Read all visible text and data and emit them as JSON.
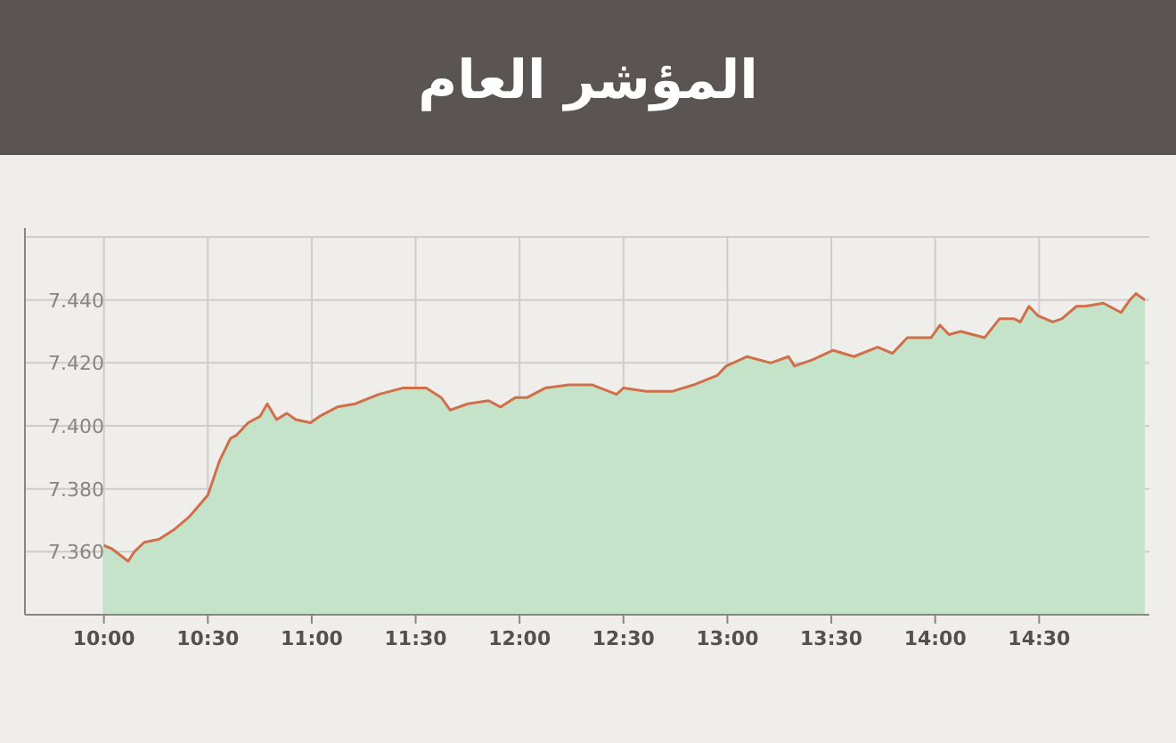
{
  "chart_data": {
    "type": "area",
    "title": "المؤشر العام",
    "x": [
      10.0,
      10.037,
      10.117,
      10.146,
      10.194,
      10.266,
      10.337,
      10.409,
      10.5,
      10.557,
      10.609,
      10.637,
      10.694,
      10.751,
      10.786,
      10.831,
      10.88,
      10.923,
      10.994,
      11.037,
      11.123,
      11.209,
      11.323,
      11.437,
      11.551,
      11.623,
      11.666,
      11.751,
      11.851,
      11.909,
      11.98,
      12.037,
      12.123,
      12.237,
      12.351,
      12.466,
      12.5,
      12.609,
      12.737,
      12.837,
      12.951,
      12.994,
      13.094,
      13.209,
      13.294,
      13.323,
      13.409,
      13.509,
      13.609,
      13.723,
      13.794,
      13.866,
      13.98,
      14.023,
      14.066,
      14.123,
      14.237,
      14.309,
      14.38,
      14.409,
      14.451,
      14.494,
      14.566,
      14.609,
      14.68,
      14.723,
      14.809,
      14.894,
      14.937,
      14.966,
      15.009
    ],
    "values": [
      7.362,
      7.361,
      7.357,
      7.36,
      7.363,
      7.364,
      7.367,
      7.371,
      7.378,
      7.389,
      7.396,
      7.397,
      7.401,
      7.403,
      7.407,
      7.402,
      7.404,
      7.402,
      7.401,
      7.403,
      7.406,
      7.407,
      7.41,
      7.412,
      7.412,
      7.409,
      7.405,
      7.407,
      7.408,
      7.406,
      7.409,
      7.409,
      7.412,
      7.413,
      7.413,
      7.41,
      7.412,
      7.411,
      7.411,
      7.413,
      7.416,
      7.419,
      7.422,
      7.42,
      7.422,
      7.419,
      7.421,
      7.424,
      7.422,
      7.425,
      7.423,
      7.428,
      7.428,
      7.432,
      7.429,
      7.43,
      7.428,
      7.434,
      7.434,
      7.433,
      7.438,
      7.435,
      7.433,
      7.434,
      7.438,
      7.438,
      7.439,
      7.436,
      7.44,
      7.442,
      7.44
    ],
    "color": "#c5e3c8",
    "xlim": [
      9.62,
      15.03
    ],
    "xticks": [
      {
        "value": 10,
        "label": "10:00"
      },
      {
        "value": 10.5,
        "label": "10:30"
      },
      {
        "value": 11,
        "label": "11:00"
      },
      {
        "value": 11.5,
        "label": "11:30"
      },
      {
        "value": 12,
        "label": "12:00"
      },
      {
        "value": 12.5,
        "label": "12:30"
      },
      {
        "value": 13,
        "label": "13:00"
      },
      {
        "value": 13.5,
        "label": "13:30"
      },
      {
        "value": 14,
        "label": "14:00"
      },
      {
        "value": 14.5,
        "label": "14:30"
      }
    ],
    "ylim": [
      7.34,
      7.46
    ],
    "yticks": [
      {
        "value": 7.36,
        "label": "7.360"
      },
      {
        "value": 7.38,
        "label": "7.380"
      },
      {
        "value": 7.4,
        "label": "7.400"
      },
      {
        "value": 7.42,
        "label": "7.420"
      },
      {
        "value": 7.44,
        "label": "7.440"
      },
      {
        "value": 7.46,
        "label": null
      }
    ],
    "grid": true
  }
}
